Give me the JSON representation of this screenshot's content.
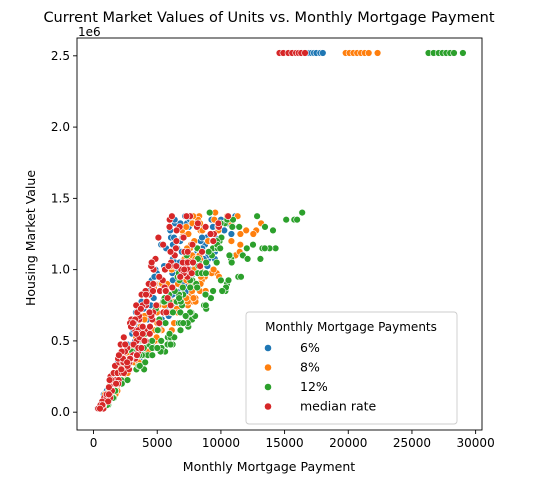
{
  "chart_data": {
    "type": "scatter",
    "title": "Current Market Values of Units vs. Monthly Mortgage Payment",
    "xlabel": "Monthly Mortgage Payment",
    "ylabel": "Housing Market Value",
    "y_offset_label": "1e6",
    "xlim": [
      -1300,
      30500
    ],
    "ylim": [
      -0.125,
      2.625
    ],
    "xticks": [
      0,
      5000,
      10000,
      15000,
      20000,
      25000,
      30000
    ],
    "xtick_labels": [
      "0",
      "5000",
      "10000",
      "15000",
      "20000",
      "25000",
      "30000"
    ],
    "yticks": [
      0.0,
      0.5,
      1.0,
      1.5,
      2.0,
      2.5
    ],
    "ytick_labels": [
      "0.0",
      "0.5",
      "1.0",
      "1.5",
      "2.0",
      "2.5"
    ],
    "grid": false,
    "legend": {
      "title": "Monthly Mortgage Payments",
      "placement": "lower-right",
      "entries": [
        "6%",
        "8%",
        "12%",
        "median rate"
      ]
    },
    "series": [
      {
        "name": "median rate",
        "color": "#d62728",
        "slope": 7000,
        "outlier_x": [
          14600,
          14900,
          15300,
          15600,
          15900,
          16100,
          16300,
          16600
        ]
      },
      {
        "name": "6%",
        "color": "#1f77b4",
        "slope": 7750,
        "outlier_x": [
          16700,
          16900,
          17100,
          17300,
          17500,
          17800,
          18000
        ]
      },
      {
        "name": "8%",
        "color": "#ff7f0e",
        "slope": 9000,
        "outlier_x": [
          19800,
          20100,
          20400,
          20700,
          21000,
          21300,
          21600,
          22300
        ]
      },
      {
        "name": "12%",
        "color": "#2ca02c",
        "slope": 11200,
        "outlier_x": [
          26300,
          26700,
          27100,
          27400,
          27700,
          28000,
          28300,
          29000
        ]
      }
    ],
    "outlier_value": 2.52,
    "value_range": [
      0.0,
      1.4
    ]
  }
}
